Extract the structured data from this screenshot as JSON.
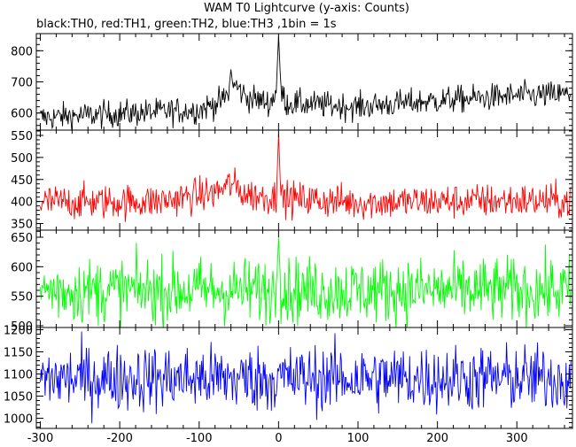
{
  "title": "WAM T0 Lightcurve (y-axis: Counts)",
  "subtitle": "black:TH0, red:TH1, green:TH2, blue:TH3 ,1bin = 1s",
  "chart_data": {
    "type": "line",
    "title": "WAM T0 Lightcurve (y-axis: Counts)",
    "subtitle": "black:TH0, red:TH1, green:TH2, blue:TH3 ,1bin = 1s",
    "xlim": [
      -305,
      370
    ],
    "xticks": [
      -300,
      -200,
      -100,
      0,
      100,
      200,
      300
    ],
    "xticklabels": [
      "-300",
      "-200",
      "-100",
      "0",
      "100",
      "200",
      "300"
    ],
    "bin_seconds": 1,
    "panels": [
      {
        "series_name": "TH0",
        "color": "#000000",
        "ylim": [
          545,
          855
        ],
        "yticks": [
          600,
          700,
          800
        ],
        "yticklabels": [
          "600",
          "700",
          "800"
        ],
        "baseline": [
          [
            -300,
            585
          ],
          [
            -200,
            598
          ],
          [
            -100,
            610
          ],
          [
            -70,
            640
          ],
          [
            -55,
            690
          ],
          [
            -40,
            650
          ],
          [
            -10,
            632
          ],
          [
            0,
            690
          ],
          [
            10,
            632
          ],
          [
            100,
            620
          ],
          [
            200,
            640
          ],
          [
            300,
            655
          ],
          [
            368,
            660
          ]
        ],
        "noise_amplitude": 22,
        "spikes": [
          {
            "x": 0,
            "y": 848
          },
          {
            "x": -60,
            "y": 740
          }
        ]
      },
      {
        "series_name": "TH1",
        "color": "#ff0000",
        "ylim": [
          335,
          562
        ],
        "yticks": [
          350,
          400,
          450,
          500,
          550
        ],
        "yticklabels": [
          "350",
          "400",
          "450",
          "500",
          "550"
        ],
        "baseline": [
          [
            -300,
            398
          ],
          [
            -150,
            400
          ],
          [
            -80,
            420
          ],
          [
            -60,
            440
          ],
          [
            -40,
            415
          ],
          [
            0,
            408
          ],
          [
            100,
            398
          ],
          [
            200,
            400
          ],
          [
            300,
            402
          ],
          [
            368,
            400
          ]
        ],
        "noise_amplitude": 20,
        "spikes": [
          {
            "x": 0,
            "y": 555
          }
        ]
      },
      {
        "series_name": "TH2",
        "color": "#00ff00",
        "ylim": [
          497,
          662
        ],
        "yticks": [
          500,
          550,
          600,
          650
        ],
        "yticklabels": [
          "500",
          "550",
          "600",
          "650"
        ],
        "baseline": [
          [
            -300,
            560
          ],
          [
            0,
            560
          ],
          [
            368,
            560
          ]
        ],
        "noise_amplitude": 28,
        "spikes": [
          {
            "x": 0,
            "y": 650
          }
        ]
      },
      {
        "series_name": "TH3",
        "color": "#0000ff",
        "ylim": [
          977,
          1205
        ],
        "yticks": [
          1000,
          1050,
          1100,
          1150,
          1200
        ],
        "yticklabels": [
          "1000",
          "1050",
          "1100",
          "1150",
          "1200"
        ],
        "baseline": [
          [
            -300,
            1090
          ],
          [
            0,
            1090
          ],
          [
            368,
            1090
          ]
        ],
        "noise_amplitude": 38,
        "spikes": []
      }
    ]
  }
}
